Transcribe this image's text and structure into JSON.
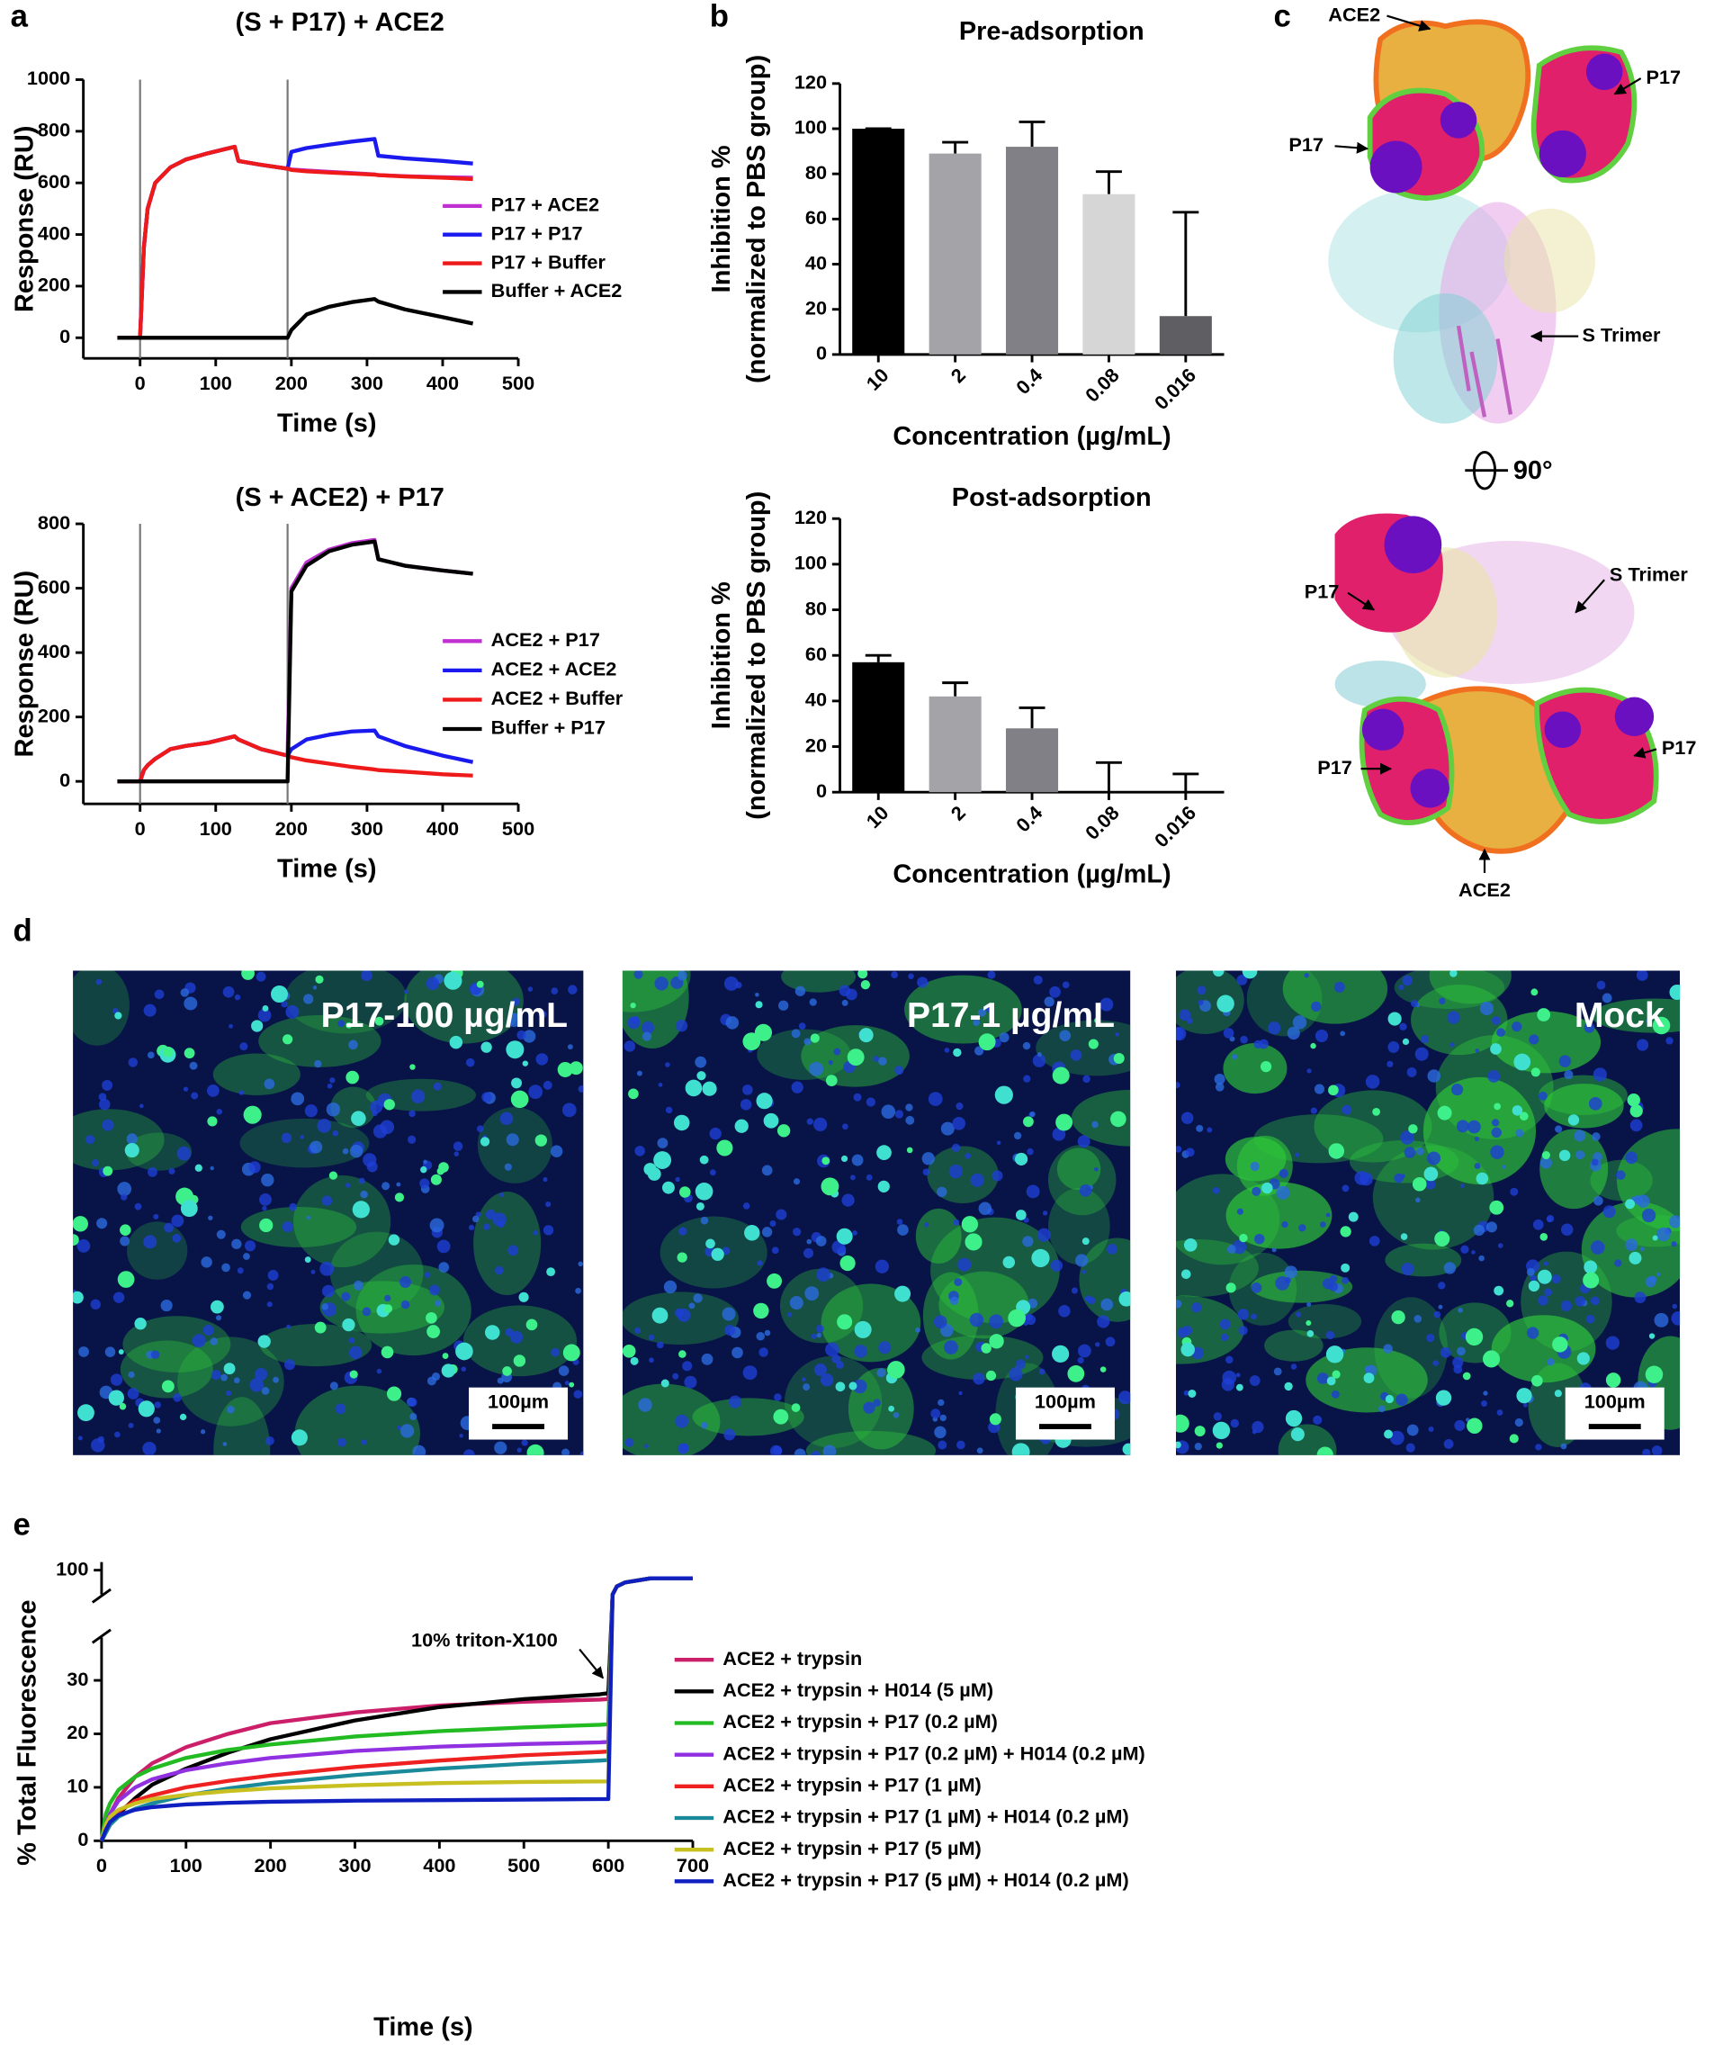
{
  "panel_labels": [
    "a",
    "b",
    "c",
    "d",
    "e"
  ],
  "chart_data": [
    {
      "type": "line",
      "title": "(S + P17) + ACE2",
      "x_label": "Time (s)",
      "y_label": "Response (RU)",
      "x": [
        -30,
        0,
        5,
        10,
        20,
        40,
        60,
        90,
        125,
        130,
        160,
        195,
        200,
        220,
        250,
        280,
        310,
        315,
        350,
        400,
        440
      ],
      "series": [
        {
          "name": "P17 + ACE2",
          "color": "#c030d0",
          "values": [
            0,
            0,
            350,
            500,
            600,
            660,
            690,
            715,
            740,
            685,
            670,
            655,
            652,
            648,
            643,
            638,
            633,
            630,
            626,
            622,
            620
          ]
        },
        {
          "name": "P17 + P17",
          "color": "#1a1aee",
          "values": [
            0,
            0,
            350,
            500,
            600,
            660,
            690,
            715,
            740,
            685,
            670,
            655,
            720,
            735,
            748,
            760,
            770,
            705,
            695,
            685,
            675
          ]
        },
        {
          "name": "P17 + Buffer",
          "color": "#ee1a1a",
          "values": [
            0,
            0,
            350,
            500,
            600,
            660,
            690,
            715,
            740,
            685,
            670,
            655,
            650,
            645,
            640,
            636,
            632,
            630,
            625,
            620,
            615
          ]
        },
        {
          "name": "Buffer + ACE2",
          "color": "#000000",
          "values": [
            0,
            0,
            0,
            0,
            0,
            0,
            0,
            0,
            0,
            0,
            0,
            0,
            30,
            90,
            120,
            138,
            150,
            140,
            110,
            80,
            55
          ]
        }
      ],
      "vlines": [
        0,
        195
      ],
      "xlim": [
        -75,
        500
      ],
      "xticks": [
        0,
        100,
        200,
        300,
        400,
        500
      ],
      "ylim": [
        -80,
        1000
      ],
      "yticks": [
        0,
        200,
        400,
        600,
        800,
        1000
      ],
      "legend": "right"
    },
    {
      "type": "line",
      "title": "(S + ACE2) + P17",
      "x_label": "Time (s)",
      "y_label": "Response (RU)",
      "x": [
        -30,
        0,
        5,
        10,
        20,
        40,
        60,
        90,
        125,
        130,
        160,
        195,
        200,
        220,
        250,
        280,
        310,
        315,
        350,
        400,
        440
      ],
      "series": [
        {
          "name": "ACE2 + P17",
          "color": "#c030d0",
          "values": [
            0,
            0,
            35,
            50,
            70,
            100,
            110,
            120,
            140,
            130,
            100,
            80,
            600,
            680,
            720,
            740,
            750,
            690,
            670,
            655,
            645
          ]
        },
        {
          "name": "ACE2 + ACE2",
          "color": "#1a1aee",
          "values": [
            0,
            0,
            35,
            50,
            70,
            100,
            110,
            120,
            140,
            130,
            100,
            80,
            100,
            130,
            145,
            155,
            158,
            140,
            110,
            80,
            60
          ]
        },
        {
          "name": "ACE2 + Buffer",
          "color": "#ee1a1a",
          "values": [
            0,
            0,
            35,
            50,
            70,
            100,
            110,
            120,
            140,
            130,
            100,
            80,
            75,
            65,
            55,
            45,
            37,
            35,
            30,
            22,
            18
          ]
        },
        {
          "name": "Buffer + P17",
          "color": "#000000",
          "values": [
            0,
            0,
            0,
            0,
            0,
            0,
            0,
            0,
            0,
            0,
            0,
            0,
            590,
            670,
            715,
            735,
            745,
            690,
            670,
            655,
            645
          ]
        }
      ],
      "vlines": [
        0,
        195
      ],
      "xlim": [
        -75,
        500
      ],
      "xticks": [
        0,
        100,
        200,
        300,
        400,
        500
      ],
      "ylim": [
        -70,
        800
      ],
      "yticks": [
        0,
        200,
        400,
        600,
        800
      ],
      "legend": "right"
    },
    {
      "type": "bar",
      "title": "Pre-adsorption",
      "x_label": "Concentration (µg/mL)",
      "y_label": [
        "Inhibition %",
        "(normalized to PBS group)"
      ],
      "categories": [
        "10",
        "2",
        "0.4",
        "0.08",
        "0.016"
      ],
      "values": [
        100,
        89,
        92,
        71,
        17
      ],
      "errors": [
        0,
        5,
        11,
        10,
        46
      ],
      "colors": [
        "#000000",
        "#a3a3a8",
        "#808086",
        "#d6d6d6",
        "#5e5e63"
      ],
      "ylim": [
        0,
        120
      ],
      "yticks": [
        0,
        20,
        40,
        60,
        80,
        100,
        120
      ]
    },
    {
      "type": "bar",
      "title": "Post-adsorption",
      "x_label": "Concentration (µg/mL)",
      "y_label": [
        "Inhibition %",
        "(normalized to PBS group)"
      ],
      "categories": [
        "10",
        "2",
        "0.4",
        "0.08",
        "0.016"
      ],
      "values": [
        57,
        42,
        28,
        0,
        0
      ],
      "errors": [
        3,
        6,
        9,
        13,
        8
      ],
      "colors": [
        "#000000",
        "#a3a3a8",
        "#808086",
        "#d6d6d6",
        "#5e5e63"
      ],
      "ylim": [
        0,
        120
      ],
      "yticks": [
        0,
        20,
        40,
        60,
        80,
        100,
        120
      ]
    },
    {
      "type": "line",
      "x_label": "Time (s)",
      "y_label": "% Total Fluorescence",
      "annotation": "10% triton-X100",
      "x": [
        0,
        5,
        10,
        20,
        40,
        60,
        100,
        150,
        200,
        300,
        400,
        500,
        590,
        600,
        605,
        610,
        620,
        650,
        700
      ],
      "series": [
        {
          "name": "ACE2 + trypsin",
          "color": "#cc1f6a",
          "values": [
            0,
            3,
            5,
            8,
            12,
            14.5,
            17.5,
            20,
            22,
            24,
            25.3,
            26,
            26.4,
            26.5,
            97,
            98,
            98.5,
            99,
            99
          ]
        },
        {
          "name": "ACE2 + trypsin + H014 (5 µM)",
          "color": "#000000",
          "values": [
            0,
            1.5,
            3,
            5,
            8,
            10.5,
            13.5,
            16.5,
            19,
            22.5,
            25,
            26.5,
            27.4,
            27.6,
            97,
            98,
            98.5,
            99,
            99
          ]
        },
        {
          "name": "ACE2 + trypsin + P17 (0.2 µM)",
          "color": "#22bb22",
          "values": [
            0,
            5,
            7,
            9.5,
            12,
            13.5,
            15.5,
            17,
            18,
            19.5,
            20.5,
            21.2,
            21.7,
            21.8,
            97,
            98,
            98.5,
            99,
            99
          ]
        },
        {
          "name": "ACE2 + trypsin + P17 (0.2 µM) + H014 (0.2 µM)",
          "color": "#9030e0",
          "values": [
            0,
            3,
            5,
            7.5,
            10,
            11.5,
            13.2,
            14.5,
            15.5,
            16.8,
            17.6,
            18.1,
            18.4,
            18.5,
            97,
            98,
            98.5,
            99,
            99
          ]
        },
        {
          "name": "ACE2 + trypsin + P17 (1 µM)",
          "color": "#ee2020",
          "values": [
            0,
            2.5,
            4,
            5.5,
            7.5,
            8.5,
            10,
            11.2,
            12.2,
            13.8,
            15,
            16,
            16.6,
            16.7,
            97,
            98,
            98.5,
            99,
            99
          ]
        },
        {
          "name": "ACE2 + trypsin + P17 (1 µM) + H014 (0.2 µM)",
          "color": "#1a8a9a",
          "values": [
            0,
            1.5,
            3,
            4.5,
            6,
            7,
            8.5,
            9.8,
            10.8,
            12.3,
            13.5,
            14.4,
            15,
            15.1,
            97,
            98,
            98.5,
            99,
            99
          ]
        },
        {
          "name": "ACE2 + trypsin + P17 (5 µM)",
          "color": "#c8c020",
          "values": [
            0,
            3,
            4.5,
            5.8,
            7,
            7.8,
            8.6,
            9.3,
            9.8,
            10.4,
            10.8,
            11,
            11.1,
            11.1,
            97,
            98,
            98.5,
            99,
            99
          ]
        },
        {
          "name": "ACE2 + trypsin + P17 (5 µM) + H014 (0.2 µM)",
          "color": "#1020c0",
          "values": [
            0,
            2,
            3.5,
            4.8,
            5.8,
            6.3,
            6.8,
            7.1,
            7.3,
            7.5,
            7.6,
            7.7,
            7.8,
            7.8,
            97,
            98,
            98.5,
            99,
            99
          ]
        }
      ],
      "xlim": [
        0,
        700
      ],
      "xticks": [
        0,
        100,
        200,
        300,
        400,
        500,
        600,
        700
      ],
      "ylim": [
        0,
        101
      ],
      "y_break": [
        38,
        97
      ],
      "yticks": [
        0,
        10,
        20,
        30,
        100
      ],
      "legend": "right"
    }
  ],
  "structure": {
    "labels": [
      "ACE2",
      "P17",
      "P17",
      "S Trimer",
      "90°",
      "P17",
      "S Trimer",
      "P17",
      "P17",
      "ACE2"
    ]
  },
  "micrographs": [
    {
      "label": "P17-100 µg/mL",
      "scale_bar": "100µm"
    },
    {
      "label": "P17-1 µg/mL",
      "scale_bar": "100µm"
    },
    {
      "label": "Mock",
      "scale_bar": "100µm"
    }
  ]
}
